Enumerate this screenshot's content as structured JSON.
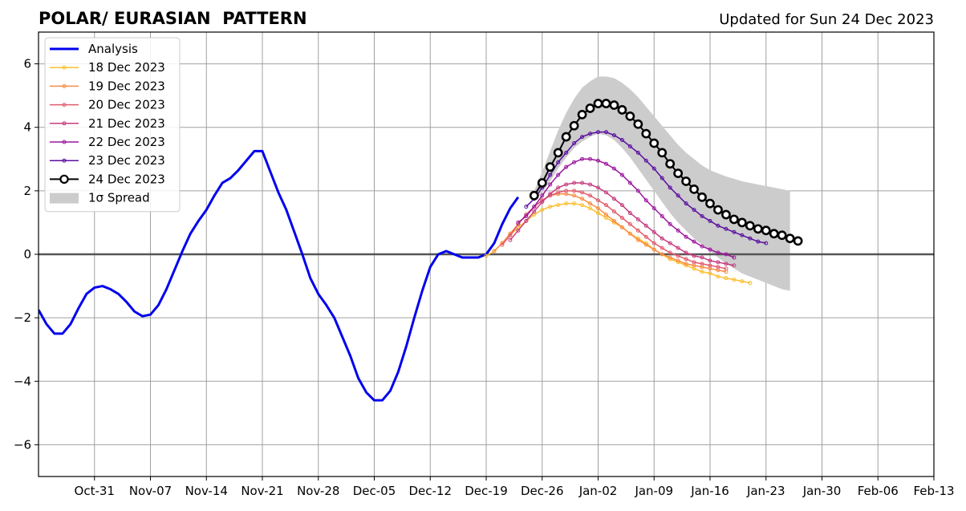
{
  "chart_data": {
    "type": "line",
    "title": "POLAR/ EURASIAN  PATTERN",
    "subtitle": "Updated for Sun 24 Dec 2023",
    "xlabel": "",
    "ylabel": "",
    "x_axis_type": "date",
    "xlim": [
      "2023-10-24",
      "2024-02-13"
    ],
    "ylim": [
      -7,
      7
    ],
    "x_ticks": [
      {
        "date": "2023-10-31",
        "label": "Oct-31"
      },
      {
        "date": "2023-11-07",
        "label": "Nov-07"
      },
      {
        "date": "2023-11-14",
        "label": "Nov-14"
      },
      {
        "date": "2023-11-21",
        "label": "Nov-21"
      },
      {
        "date": "2023-11-28",
        "label": "Nov-28"
      },
      {
        "date": "2023-12-05",
        "label": "Dec-05"
      },
      {
        "date": "2023-12-12",
        "label": "Dec-12"
      },
      {
        "date": "2023-12-19",
        "label": "Dec-19"
      },
      {
        "date": "2023-12-26",
        "label": "Dec-26"
      },
      {
        "date": "2024-01-02",
        "label": "Jan-02"
      },
      {
        "date": "2024-01-09",
        "label": "Jan-09"
      },
      {
        "date": "2024-01-16",
        "label": "Jan-16"
      },
      {
        "date": "2024-01-23",
        "label": "Jan-23"
      },
      {
        "date": "2024-01-30",
        "label": "Jan-30"
      },
      {
        "date": "2024-02-06",
        "label": "Feb-06"
      },
      {
        "date": "2024-02-13",
        "label": "Feb-13"
      }
    ],
    "y_ticks": [
      {
        "value": -6,
        "label": "−6"
      },
      {
        "value": -4,
        "label": "−4"
      },
      {
        "value": -2,
        "label": "−2"
      },
      {
        "value": 0,
        "label": "0"
      },
      {
        "value": 2,
        "label": "2"
      },
      {
        "value": 4,
        "label": "4"
      },
      {
        "value": 6,
        "label": "6"
      }
    ],
    "grid": true,
    "zero_line": true,
    "legend_position": "upper-left",
    "series": [
      {
        "name": "Analysis",
        "color": "#0000ee",
        "style": "thick-line",
        "start_date": "2023-10-24",
        "values": [
          -1.75,
          -2.2,
          -2.5,
          -2.5,
          -2.2,
          -1.7,
          -1.25,
          -1.05,
          -1.0,
          -1.1,
          -1.25,
          -1.5,
          -1.8,
          -1.95,
          -1.9,
          -1.6,
          -1.1,
          -0.5,
          0.1,
          0.65,
          1.05,
          1.4,
          1.85,
          2.25,
          2.4,
          2.65,
          2.95,
          3.25,
          3.25,
          2.6,
          1.95,
          1.4,
          0.7,
          0.0,
          -0.75,
          -1.25,
          -1.6,
          -2.0,
          -2.6,
          -3.2,
          -3.9,
          -4.35,
          -4.6,
          -4.6,
          -4.3,
          -3.7,
          -2.9,
          -2.0,
          -1.15,
          -0.4,
          0.0,
          0.1,
          0.0,
          -0.1,
          -0.1,
          -0.1,
          0.0,
          0.35,
          0.95,
          1.45,
          1.8
        ]
      },
      {
        "name": "18 Dec 2023",
        "color": "#fbbf2e",
        "style": "small-markers",
        "start_date": "2023-12-19",
        "values": [
          -0.05,
          0.1,
          0.35,
          0.6,
          0.85,
          1.05,
          1.25,
          1.4,
          1.5,
          1.55,
          1.6,
          1.6,
          1.55,
          1.45,
          1.3,
          1.15,
          1.0,
          0.85,
          0.65,
          0.5,
          0.35,
          0.15,
          0.0,
          -0.15,
          -0.25,
          -0.35,
          -0.45,
          -0.55,
          -0.6,
          -0.7,
          -0.75,
          -0.8,
          -0.85,
          -0.9
        ]
      },
      {
        "name": "19 Dec 2023",
        "color": "#f98c40",
        "style": "small-markers",
        "start_date": "2023-12-20",
        "values": [
          0.1,
          0.35,
          0.65,
          0.95,
          1.25,
          1.5,
          1.7,
          1.85,
          1.9,
          1.9,
          1.85,
          1.75,
          1.6,
          1.45,
          1.25,
          1.05,
          0.85,
          0.65,
          0.45,
          0.3,
          0.15,
          0.0,
          -0.1,
          -0.2,
          -0.3,
          -0.35,
          -0.4,
          -0.45,
          -0.5,
          -0.55
        ]
      },
      {
        "name": "20 Dec 2023",
        "color": "#e25a6c",
        "style": "small-markers",
        "start_date": "2023-12-21",
        "values": [
          0.3,
          0.6,
          0.95,
          1.25,
          1.5,
          1.7,
          1.85,
          1.95,
          2.0,
          2.0,
          1.95,
          1.85,
          1.7,
          1.55,
          1.35,
          1.15,
          0.95,
          0.75,
          0.55,
          0.35,
          0.2,
          0.05,
          -0.05,
          -0.15,
          -0.25,
          -0.3,
          -0.35,
          -0.4,
          -0.45
        ]
      },
      {
        "name": "21 Dec 2023",
        "color": "#c63c80",
        "style": "small-markers",
        "start_date": "2023-12-22",
        "values": [
          0.45,
          0.75,
          1.05,
          1.35,
          1.65,
          1.9,
          2.1,
          2.2,
          2.25,
          2.25,
          2.2,
          2.1,
          1.95,
          1.75,
          1.55,
          1.3,
          1.1,
          0.9,
          0.7,
          0.5,
          0.35,
          0.2,
          0.05,
          -0.05,
          -0.1,
          -0.2,
          -0.25,
          -0.3,
          -0.35
        ]
      },
      {
        "name": "22 Dec 2023",
        "color": "#9b179e",
        "style": "small-markers",
        "start_date": "2023-12-23",
        "values": [
          1.0,
          1.2,
          1.5,
          1.85,
          2.2,
          2.5,
          2.75,
          2.9,
          3.0,
          3.0,
          2.95,
          2.85,
          2.7,
          2.5,
          2.25,
          2.0,
          1.7,
          1.45,
          1.2,
          0.95,
          0.75,
          0.55,
          0.4,
          0.25,
          0.15,
          0.05,
          0.0,
          -0.1
        ]
      },
      {
        "name": "23 Dec 2023",
        "color": "#5a0ea0",
        "style": "small-markers",
        "start_date": "2023-12-24",
        "values": [
          1.5,
          1.75,
          2.1,
          2.5,
          2.9,
          3.2,
          3.5,
          3.7,
          3.8,
          3.85,
          3.85,
          3.75,
          3.6,
          3.4,
          3.2,
          2.95,
          2.7,
          2.4,
          2.1,
          1.85,
          1.6,
          1.4,
          1.2,
          1.05,
          0.9,
          0.8,
          0.7,
          0.6,
          0.5,
          0.4,
          0.35
        ]
      },
      {
        "name": "24 Dec 2023",
        "color": "#000000",
        "style": "big-markers",
        "start_date": "2023-12-25",
        "values": [
          1.85,
          2.25,
          2.75,
          3.2,
          3.7,
          4.05,
          4.4,
          4.6,
          4.75,
          4.75,
          4.7,
          4.55,
          4.35,
          4.1,
          3.8,
          3.5,
          3.2,
          2.85,
          2.55,
          2.3,
          2.05,
          1.8,
          1.6,
          1.4,
          1.25,
          1.1,
          1.0,
          0.9,
          0.8,
          0.75,
          0.65,
          0.6,
          0.5,
          0.42
        ]
      }
    ],
    "spread": {
      "name": "1σ Spread",
      "color": "#cccccc",
      "start_date": "2023-12-25",
      "upper": [
        2.0,
        2.6,
        3.25,
        3.9,
        4.45,
        4.9,
        5.25,
        5.45,
        5.6,
        5.6,
        5.55,
        5.4,
        5.2,
        4.95,
        4.65,
        4.35,
        4.05,
        3.75,
        3.45,
        3.2,
        3.0,
        2.8,
        2.65,
        2.55,
        2.45,
        2.38,
        2.3,
        2.25,
        2.2,
        2.15,
        2.1,
        2.05,
        2.0
      ],
      "lower": [
        1.7,
        1.95,
        2.3,
        2.7,
        3.05,
        3.35,
        3.55,
        3.7,
        3.8,
        3.75,
        3.6,
        3.35,
        3.05,
        2.7,
        2.35,
        2.0,
        1.65,
        1.3,
        1.0,
        0.75,
        0.5,
        0.3,
        0.1,
        -0.1,
        -0.3,
        -0.45,
        -0.6,
        -0.7,
        -0.8,
        -0.9,
        -1.0,
        -1.1,
        -1.15
      ]
    }
  }
}
